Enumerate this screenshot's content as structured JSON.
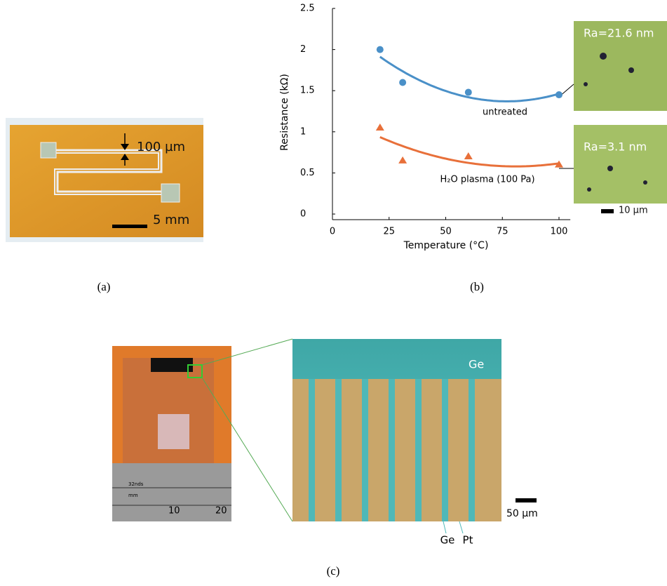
{
  "panel_a": {
    "label": "(a)",
    "gap_label": "100 µm",
    "scale_label": "5 mm"
  },
  "chart_data": {
    "type": "scatter",
    "trendline": "quadratic",
    "xlabel": "Temperature (°C)",
    "ylabel": "Resistance (kΩ)",
    "xlim": [
      0,
      105
    ],
    "ylim": [
      0,
      2.5
    ],
    "xticks": [
      0,
      25,
      50,
      75,
      100
    ],
    "yticks": [
      0,
      0.5,
      1,
      1.5,
      2,
      2.5
    ],
    "series": [
      {
        "name": "untreated",
        "color": "#4a90c8",
        "marker": "circle",
        "x": [
          21,
          31,
          60,
          100
        ],
        "values": [
          2.0,
          1.6,
          1.48,
          1.45
        ]
      },
      {
        "name": "H₂O plasma (100 Pa)",
        "color": "#e8703a",
        "marker": "triangle",
        "x": [
          21,
          31,
          60,
          100
        ],
        "values": [
          1.05,
          0.65,
          0.7,
          0.6
        ]
      }
    ],
    "insets": [
      "Ra=21.6 nm",
      "Ra=3.1 nm"
    ],
    "inset_scale": "10 µm",
    "label": "(b)"
  },
  "panel_c": {
    "ruler_unit_a": "32nds",
    "ruler_unit_b": "mm",
    "ruler_ticks": [
      "10",
      "20"
    ],
    "top_label": "Ge",
    "bottom_labels": [
      "Ge",
      "Pt"
    ],
    "scale_label": "50 µm",
    "label": "(c)"
  }
}
